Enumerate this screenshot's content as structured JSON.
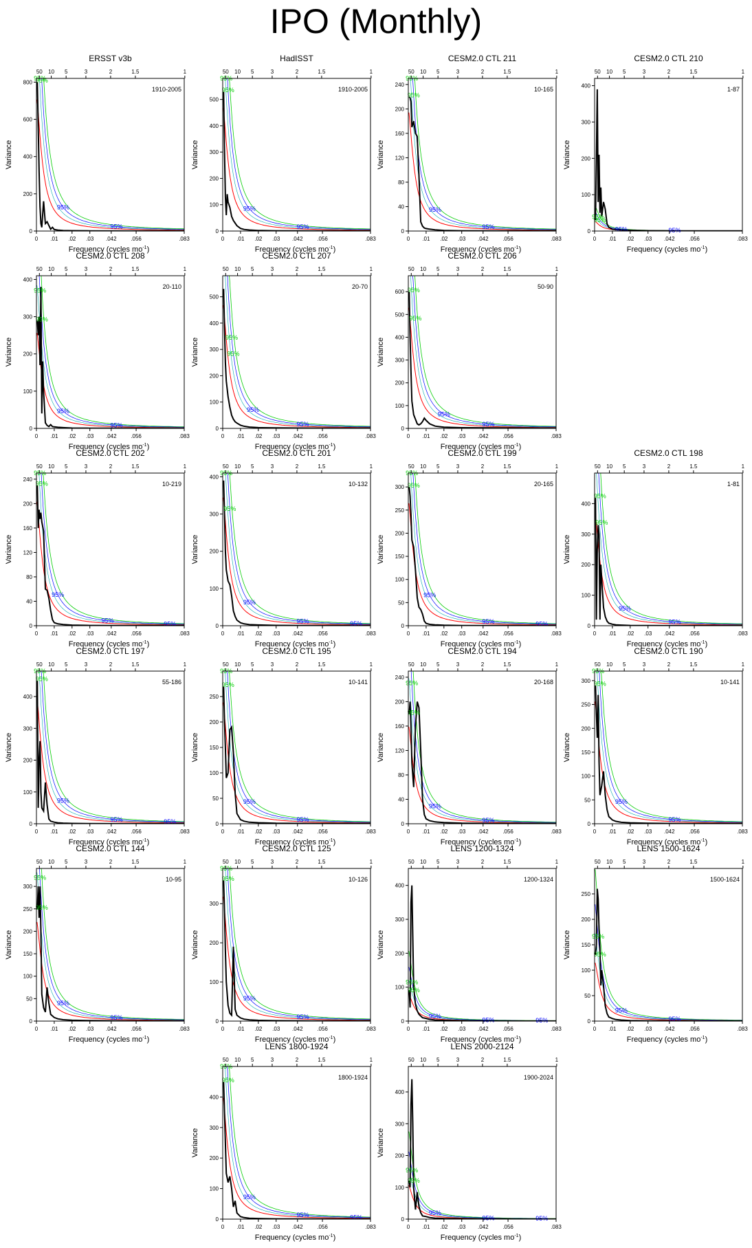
{
  "title": "IPO (Monthly)",
  "common": {
    "ylabel": "Variance",
    "xlabel": "Frequency (cycles mo",
    "xlabel_sup": "-1",
    "x_ticks": [
      0,
      0.01,
      0.02,
      0.03,
      0.042,
      0.056,
      0.083
    ],
    "x_tick_labels": [
      "0",
      ".01",
      ".02",
      ".03",
      ".042",
      ".056",
      ".083"
    ],
    "xlim": [
      0,
      0.083
    ],
    "period_ticks": [
      50,
      10,
      5,
      3,
      2,
      1.5,
      1
    ],
    "period_tick_labels": [
      "50",
      "10",
      "5",
      "3",
      "2",
      "1.5",
      "1"
    ],
    "ci_label": "95%",
    "colors": {
      "spectrum": "#000000",
      "red_noise": "#ff0000",
      "ci_blue": "#0000ff",
      "ci_green": "#00cc00",
      "ci_cyan": "#00aaaa"
    }
  },
  "chart_data": [
    {
      "type": "line",
      "title": "ERSST v3b",
      "period": "1910-2005",
      "ylim": [
        0,
        820
      ],
      "yticks": [
        0,
        200,
        400,
        600,
        800
      ],
      "x": [
        0.0005,
        0.001,
        0.0015,
        0.002,
        0.0025,
        0.003,
        0.004,
        0.005,
        0.006,
        0.007,
        0.008,
        0.009,
        0.01,
        0.012,
        0.015,
        0.02,
        0.03,
        0.05,
        0.083
      ],
      "values": [
        800,
        560,
        320,
        130,
        40,
        20,
        160,
        40,
        50,
        30,
        10,
        20,
        8,
        5,
        3,
        2,
        1,
        0.5,
        0.5
      ],
      "ci_marks": [
        0.002,
        0.003,
        0.015,
        0.045
      ]
    },
    {
      "type": "line",
      "title": "HadISST",
      "period": "1910-2005",
      "ylim": [
        0,
        580
      ],
      "yticks": [
        0,
        100,
        200,
        300,
        400,
        500
      ],
      "x": [
        0.0005,
        0.001,
        0.0015,
        0.002,
        0.0025,
        0.003,
        0.004,
        0.005,
        0.006,
        0.007,
        0.008,
        0.01,
        0.012,
        0.015,
        0.02,
        0.03,
        0.05,
        0.083
      ],
      "values": [
        530,
        300,
        130,
        60,
        140,
        110,
        90,
        55,
        40,
        30,
        20,
        10,
        6,
        4,
        2,
        1,
        0.5,
        0.3
      ],
      "ci_marks": [
        0.002,
        0.003,
        0.015,
        0.045
      ]
    },
    {
      "type": "line",
      "title": "CESM2.0 CTL 211",
      "period": "10-165",
      "ylim": [
        0,
        250
      ],
      "yticks": [
        0,
        40,
        80,
        120,
        160,
        200,
        240
      ],
      "x": [
        0.0005,
        0.001,
        0.0015,
        0.002,
        0.0025,
        0.003,
        0.004,
        0.005,
        0.006,
        0.007,
        0.008,
        0.009,
        0.01,
        0.012,
        0.015,
        0.02,
        0.03,
        0.05,
        0.083
      ],
      "values": [
        220,
        218,
        212,
        170,
        175,
        180,
        160,
        155,
        90,
        15,
        8,
        5,
        4,
        3,
        2,
        1,
        0.5,
        0.3,
        0.2
      ],
      "ci_marks": [
        0.002,
        0.003,
        0.015,
        0.045
      ]
    },
    {
      "type": "line",
      "title": "CESM2.0 CTL 210",
      "period": "1-87",
      "ylim": [
        0,
        420
      ],
      "yticks": [
        0,
        100,
        200,
        300,
        400
      ],
      "x": [
        0.0005,
        0.001,
        0.0015,
        0.002,
        0.0025,
        0.003,
        0.0035,
        0.004,
        0.005,
        0.006,
        0.007,
        0.008,
        0.01,
        0.012,
        0.015,
        0.02,
        0.03,
        0.05,
        0.083
      ],
      "values": [
        30,
        200,
        390,
        80,
        210,
        50,
        120,
        40,
        80,
        60,
        20,
        10,
        5,
        4,
        3,
        2,
        1,
        0.5,
        0.3
      ],
      "ci_marks": [
        0.002,
        0.003,
        0.015,
        0.045
      ]
    },
    {
      "type": "line",
      "title": "CESM2.0 CTL 208",
      "period": "20-110",
      "ylim": [
        0,
        410
      ],
      "yticks": [
        0,
        100,
        200,
        300,
        400
      ],
      "x": [
        0.0005,
        0.001,
        0.0015,
        0.002,
        0.0025,
        0.003,
        0.0035,
        0.004,
        0.005,
        0.006,
        0.007,
        0.008,
        0.009,
        0.01,
        0.012,
        0.015,
        0.02,
        0.03,
        0.05,
        0.083
      ],
      "values": [
        290,
        250,
        300,
        170,
        380,
        40,
        180,
        100,
        15,
        8,
        5,
        10,
        5,
        4,
        3,
        2,
        1,
        0.5,
        0.3,
        0.2
      ],
      "ci_marks": [
        0.002,
        0.003,
        0.015,
        0.045
      ]
    },
    {
      "type": "line",
      "title": "CESM2.0 CTL 207",
      "period": "20-70",
      "ylim": [
        0,
        580
      ],
      "yticks": [
        0,
        100,
        200,
        300,
        400,
        500
      ],
      "x": [
        0.0005,
        0.001,
        0.0015,
        0.002,
        0.003,
        0.004,
        0.005,
        0.006,
        0.007,
        0.008,
        0.01,
        0.012,
        0.015,
        0.02,
        0.03,
        0.05,
        0.083
      ],
      "values": [
        530,
        380,
        250,
        180,
        120,
        80,
        50,
        35,
        25,
        20,
        12,
        8,
        5,
        3,
        2,
        1,
        0.5
      ],
      "ci_marks": [
        0.005,
        0.006,
        0.017,
        0.045
      ]
    },
    {
      "type": "line",
      "title": "CESM2.0 CTL 206",
      "period": "50-90",
      "ylim": [
        0,
        670
      ],
      "yticks": [
        0,
        100,
        200,
        300,
        400,
        500,
        600
      ],
      "x": [
        0.0005,
        0.001,
        0.0015,
        0.002,
        0.003,
        0.004,
        0.005,
        0.006,
        0.007,
        0.008,
        0.009,
        0.01,
        0.012,
        0.015,
        0.02,
        0.03,
        0.05,
        0.083
      ],
      "values": [
        600,
        400,
        250,
        120,
        60,
        40,
        20,
        15,
        20,
        30,
        45,
        35,
        20,
        10,
        5,
        3,
        2,
        1
      ],
      "ci_marks": [
        0.003,
        0.004,
        0.02,
        0.045
      ]
    },
    null,
    {
      "type": "line",
      "title": "CESM2.0 CTL 202",
      "period": "10-219",
      "ylim": [
        0,
        250
      ],
      "yticks": [
        0,
        40,
        80,
        120,
        160,
        200,
        240
      ],
      "x": [
        0.0005,
        0.001,
        0.0015,
        0.002,
        0.0025,
        0.003,
        0.004,
        0.005,
        0.006,
        0.007,
        0.008,
        0.009,
        0.01,
        0.012,
        0.015,
        0.02,
        0.03,
        0.05,
        0.083
      ],
      "values": [
        230,
        160,
        190,
        175,
        185,
        170,
        155,
        60,
        58,
        45,
        25,
        10,
        5,
        3,
        2,
        1,
        0.5,
        0.3,
        0.2
      ],
      "ci_marks": [
        0.002,
        0.003,
        0.012,
        0.04,
        0.075
      ]
    },
    {
      "type": "line",
      "title": "CESM2.0 CTL 201",
      "period": "10-132",
      "ylim": [
        0,
        410
      ],
      "yticks": [
        0,
        100,
        200,
        300,
        400
      ],
      "x": [
        0.0005,
        0.001,
        0.0015,
        0.002,
        0.003,
        0.004,
        0.005,
        0.006,
        0.007,
        0.008,
        0.01,
        0.012,
        0.015,
        0.02,
        0.03,
        0.05,
        0.083
      ],
      "values": [
        390,
        300,
        200,
        150,
        120,
        110,
        80,
        40,
        25,
        15,
        8,
        5,
        3,
        2,
        1,
        0.5,
        0.3
      ],
      "ci_marks": [
        0.002,
        0.004,
        0.015,
        0.045,
        0.075
      ]
    },
    {
      "type": "line",
      "title": "CESM2.0 CTL 199",
      "period": "20-165",
      "ylim": [
        0,
        330
      ],
      "yticks": [
        0,
        50,
        100,
        150,
        200,
        250,
        300
      ],
      "x": [
        0.0005,
        0.001,
        0.0015,
        0.002,
        0.003,
        0.004,
        0.005,
        0.006,
        0.007,
        0.008,
        0.009,
        0.01,
        0.012,
        0.015,
        0.02,
        0.03,
        0.05,
        0.083
      ],
      "values": [
        300,
        280,
        240,
        185,
        170,
        120,
        60,
        40,
        35,
        25,
        10,
        5,
        3,
        2,
        1,
        0.5,
        0.3,
        0.2
      ],
      "ci_marks": [
        0.002,
        0.003,
        0.012,
        0.045,
        0.075
      ]
    },
    {
      "type": "line",
      "title": "CESM2.0 CTL 198",
      "period": "1-81",
      "ylim": [
        0,
        500
      ],
      "yticks": [
        0,
        100,
        200,
        300,
        400
      ],
      "x": [
        0.0005,
        0.001,
        0.0015,
        0.002,
        0.0025,
        0.003,
        0.0035,
        0.004,
        0.005,
        0.006,
        0.007,
        0.008,
        0.01,
        0.012,
        0.015,
        0.02,
        0.03,
        0.05,
        0.083
      ],
      "values": [
        420,
        20,
        250,
        330,
        300,
        20,
        200,
        150,
        60,
        30,
        15,
        8,
        5,
        3,
        2,
        1,
        0.5,
        0.3,
        0.2
      ],
      "ci_marks": [
        0.003,
        0.004,
        0.017,
        0.045
      ]
    },
    {
      "type": "line",
      "title": "CESM2.0 CTL 197",
      "period": "55-186",
      "ylim": [
        0,
        480
      ],
      "yticks": [
        0,
        100,
        200,
        300,
        400
      ],
      "x": [
        0.0005,
        0.001,
        0.0015,
        0.002,
        0.0025,
        0.003,
        0.004,
        0.005,
        0.006,
        0.007,
        0.008,
        0.01,
        0.012,
        0.015,
        0.02,
        0.03,
        0.05,
        0.083
      ],
      "values": [
        450,
        50,
        200,
        260,
        100,
        50,
        40,
        130,
        60,
        15,
        8,
        5,
        3,
        2,
        1,
        0.5,
        0.3,
        0.2
      ],
      "ci_marks": [
        0.002,
        0.003,
        0.015,
        0.045,
        0.075
      ]
    },
    {
      "type": "line",
      "title": "CESM2.0 CTL 195",
      "period": "10-141",
      "ylim": [
        0,
        300
      ],
      "yticks": [
        0,
        50,
        100,
        150,
        200,
        250
      ],
      "x": [
        0.0005,
        0.001,
        0.0015,
        0.002,
        0.003,
        0.004,
        0.005,
        0.006,
        0.007,
        0.008,
        0.01,
        0.012,
        0.015,
        0.02,
        0.03,
        0.05,
        0.083
      ],
      "values": [
        270,
        200,
        150,
        90,
        100,
        185,
        190,
        140,
        60,
        20,
        8,
        5,
        3,
        2,
        1,
        0.5,
        0.3
      ],
      "ci_marks": [
        0.002,
        0.003,
        0.015,
        0.045
      ]
    },
    {
      "type": "line",
      "title": "CESM2.0 CTL 194",
      "period": "20-168",
      "ylim": [
        0,
        250
      ],
      "yticks": [
        0,
        40,
        80,
        120,
        160,
        200,
        240
      ],
      "x": [
        0.0005,
        0.001,
        0.0015,
        0.002,
        0.003,
        0.004,
        0.005,
        0.006,
        0.007,
        0.008,
        0.009,
        0.01,
        0.012,
        0.015,
        0.02,
        0.03,
        0.05,
        0.083
      ],
      "values": [
        180,
        200,
        160,
        100,
        60,
        160,
        200,
        190,
        120,
        40,
        15,
        8,
        5,
        3,
        2,
        1,
        0.5,
        0.3
      ],
      "ci_marks": [
        0.002,
        0.003,
        0.015,
        0.045
      ]
    },
    {
      "type": "line",
      "title": "CESM2.0 CTL 190",
      "period": "10-141",
      "ylim": [
        0,
        320
      ],
      "yticks": [
        0,
        50,
        100,
        150,
        200,
        250,
        300
      ],
      "x": [
        0.0005,
        0.001,
        0.0015,
        0.002,
        0.0025,
        0.003,
        0.004,
        0.005,
        0.006,
        0.007,
        0.008,
        0.01,
        0.012,
        0.015,
        0.02,
        0.03,
        0.05,
        0.083
      ],
      "values": [
        290,
        230,
        180,
        270,
        130,
        60,
        80,
        110,
        60,
        30,
        15,
        8,
        5,
        3,
        2,
        1,
        0.5,
        0.3
      ],
      "ci_marks": [
        0.002,
        0.003,
        0.015,
        0.045
      ]
    },
    {
      "type": "line",
      "title": "CESM2.0 CTL 144",
      "period": "10-95",
      "ylim": [
        0,
        340
      ],
      "yticks": [
        0,
        50,
        100,
        150,
        200,
        250,
        300
      ],
      "x": [
        0.0005,
        0.001,
        0.0015,
        0.002,
        0.0025,
        0.003,
        0.004,
        0.005,
        0.006,
        0.007,
        0.008,
        0.01,
        0.012,
        0.015,
        0.02,
        0.03,
        0.05,
        0.083
      ],
      "values": [
        250,
        300,
        230,
        300,
        200,
        60,
        30,
        20,
        75,
        40,
        15,
        8,
        5,
        3,
        2,
        1,
        0.5,
        0.3
      ],
      "ci_marks": [
        0.002,
        0.003,
        0.015,
        0.045
      ]
    },
    {
      "type": "line",
      "title": "CESM2.0 CTL 125",
      "period": "10-126",
      "ylim": [
        0,
        390
      ],
      "yticks": [
        0,
        100,
        200,
        300
      ],
      "x": [
        0.0005,
        0.001,
        0.0015,
        0.002,
        0.003,
        0.004,
        0.005,
        0.006,
        0.007,
        0.008,
        0.01,
        0.012,
        0.015,
        0.02,
        0.03,
        0.05,
        0.083
      ],
      "values": [
        360,
        280,
        180,
        100,
        40,
        20,
        15,
        190,
        30,
        15,
        8,
        5,
        3,
        2,
        1,
        0.5,
        0.3
      ],
      "ci_marks": [
        0.002,
        0.003,
        0.015,
        0.045
      ]
    },
    {
      "type": "line",
      "title": "LENS 1200-1324",
      "period": "1200-1324",
      "ylim": [
        0,
        450
      ],
      "yticks": [
        0,
        100,
        200,
        300,
        400
      ],
      "x": [
        0.0005,
        0.001,
        0.0015,
        0.002,
        0.0025,
        0.003,
        0.004,
        0.005,
        0.006,
        0.007,
        0.008,
        0.01,
        0.012,
        0.015,
        0.02,
        0.03,
        0.05,
        0.083
      ],
      "values": [
        90,
        40,
        350,
        400,
        250,
        100,
        50,
        30,
        20,
        15,
        10,
        8,
        5,
        3,
        2,
        1,
        0.5,
        0.3
      ],
      "ci_marks": [
        0.002,
        0.003,
        0.015,
        0.045,
        0.075
      ]
    },
    {
      "type": "line",
      "title": "LENS 1500-1624",
      "period": "1500-1624",
      "ylim": [
        0,
        300
      ],
      "yticks": [
        0,
        50,
        100,
        150,
        200,
        250
      ],
      "x": [
        0.0005,
        0.001,
        0.0015,
        0.002,
        0.0025,
        0.003,
        0.0035,
        0.004,
        0.005,
        0.006,
        0.007,
        0.008,
        0.01,
        0.012,
        0.015,
        0.02,
        0.03,
        0.05,
        0.083
      ],
      "values": [
        130,
        150,
        260,
        240,
        180,
        140,
        70,
        100,
        70,
        30,
        15,
        8,
        5,
        3,
        2,
        1,
        0.5,
        0.3,
        0.2
      ],
      "ci_marks": [
        0.002,
        0.003,
        0.015,
        0.045
      ]
    },
    null,
    {
      "type": "line",
      "title": "LENS 1800-1924",
      "period": "1800-1924",
      "ylim": [
        0,
        500
      ],
      "yticks": [
        0,
        100,
        200,
        300,
        400
      ],
      "x": [
        0.0005,
        0.001,
        0.0015,
        0.002,
        0.003,
        0.004,
        0.005,
        0.006,
        0.007,
        0.008,
        0.01,
        0.012,
        0.015,
        0.02,
        0.03,
        0.05,
        0.083
      ],
      "values": [
        450,
        350,
        250,
        150,
        120,
        140,
        100,
        40,
        60,
        20,
        8,
        5,
        3,
        2,
        1,
        0.5,
        0.3
      ],
      "ci_marks": [
        0.002,
        0.003,
        0.015,
        0.045,
        0.075
      ]
    },
    {
      "type": "line",
      "title": "LENS 2000-2124",
      "period": "1900-2024",
      "ylim": [
        0,
        480
      ],
      "yticks": [
        0,
        100,
        200,
        300,
        400
      ],
      "x": [
        0.0005,
        0.001,
        0.0015,
        0.002,
        0.0025,
        0.003,
        0.004,
        0.005,
        0.006,
        0.007,
        0.008,
        0.01,
        0.012,
        0.015,
        0.02,
        0.03,
        0.05,
        0.083
      ],
      "values": [
        120,
        100,
        360,
        440,
        300,
        100,
        30,
        85,
        40,
        20,
        10,
        8,
        5,
        3,
        2,
        1,
        0.5,
        0.3
      ],
      "ci_marks": [
        0.002,
        0.003,
        0.015,
        0.045,
        0.075
      ]
    },
    null
  ]
}
